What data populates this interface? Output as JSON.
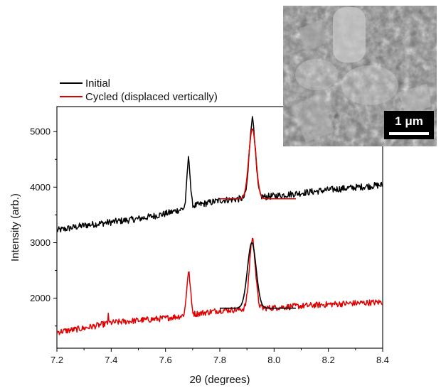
{
  "chart_data": {
    "type": "line",
    "xlabel": "2θ (degrees)",
    "ylabel": "Intensity (arb.)",
    "xlim": [
      7.2,
      8.4
    ],
    "ylim": [
      1100,
      5450
    ],
    "x_ticks": [
      7.2,
      7.4,
      7.6,
      7.8,
      8.0,
      8.2,
      8.4
    ],
    "x_tick_labels": [
      "7.2",
      "7.4",
      "7.6",
      "7.8",
      "8.0",
      "8.2",
      "8.4"
    ],
    "y_ticks": [
      2000,
      3000,
      4000,
      5000
    ],
    "y_tick_labels": [
      "2000",
      "3000",
      "4000",
      "5000"
    ],
    "grid": false,
    "legend_position": "top-left, above plot",
    "colors": {
      "initial": "#000000",
      "cycled": "#e00000",
      "fit": "#000000"
    },
    "series": [
      {
        "name": "Initial",
        "color": "#000000",
        "features": {
          "baseline": [
            [
              7.2,
              3220
            ],
            [
              7.3,
              3310
            ],
            [
              7.4,
              3370
            ],
            [
              7.5,
              3430
            ],
            [
              7.6,
              3520
            ],
            [
              7.7,
              3660
            ],
            [
              7.8,
              3760
            ],
            [
              8.0,
              3840
            ],
            [
              8.2,
              3950
            ],
            [
              8.4,
              4040
            ]
          ],
          "noise": 60,
          "peaks": [
            {
              "center": 7.685,
              "height": 870,
              "width": 0.006
            },
            {
              "center": 7.92,
              "height": 1420,
              "width": 0.011
            }
          ]
        }
      },
      {
        "name": "Cycled (displaced vertically)",
        "color": "#e00000",
        "features": {
          "baseline": [
            [
              7.2,
              1390
            ],
            [
              7.3,
              1460
            ],
            [
              7.4,
              1560
            ],
            [
              7.5,
              1600
            ],
            [
              7.6,
              1640
            ],
            [
              7.7,
              1710
            ],
            [
              7.8,
              1780
            ],
            [
              8.0,
              1830
            ],
            [
              8.2,
              1890
            ],
            [
              8.4,
              1930
            ]
          ],
          "noise": 55,
          "spikes": [
            {
              "x": 7.39,
              "y": 1730
            }
          ],
          "peaks": [
            {
              "center": 7.685,
              "height": 760,
              "width": 0.007
            },
            {
              "center": 7.92,
              "height": 1250,
              "width": 0.011
            }
          ]
        }
      }
    ],
    "fits": [
      {
        "color": "#e00000",
        "x_range": [
          7.8,
          8.08
        ],
        "baseline": 3790,
        "center": 7.92,
        "height": 1260,
        "width": 0.013
      },
      {
        "color": "#000000",
        "x_range": [
          7.8,
          8.08
        ],
        "baseline": 1820,
        "center": 7.918,
        "height": 1180,
        "width": 0.016
      }
    ]
  },
  "inset": {
    "scale_bar_label": "1 μm"
  }
}
